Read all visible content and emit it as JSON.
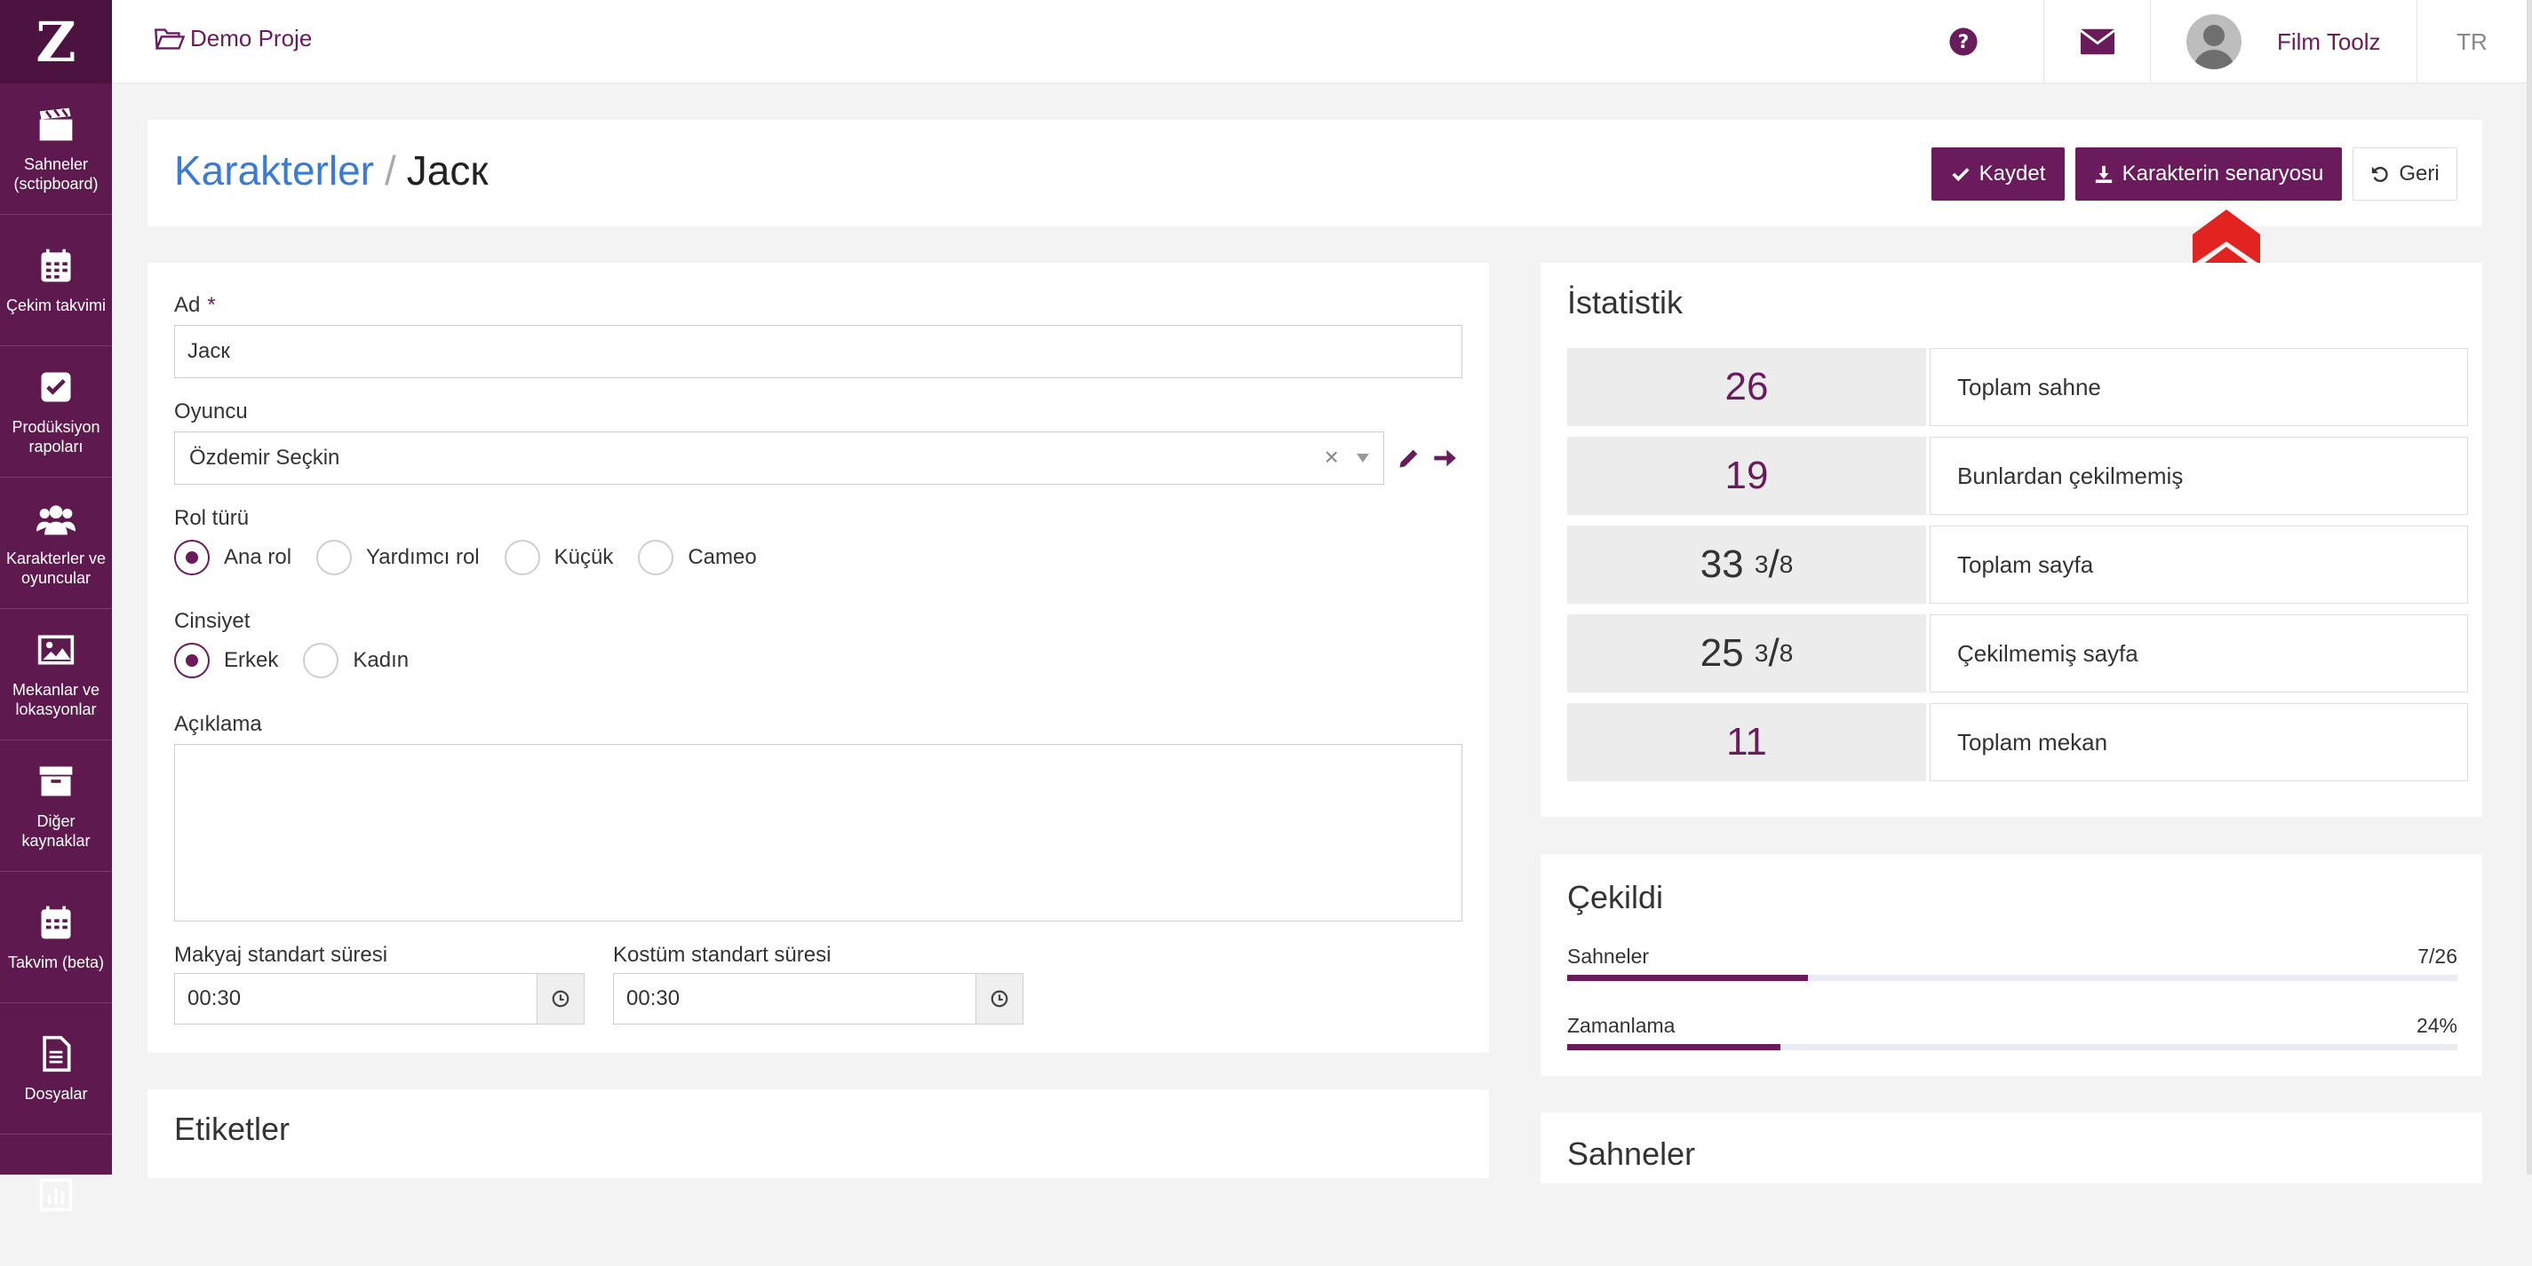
{
  "sidebar": {
    "logo": "Z",
    "items": [
      {
        "label": "Sahneler (sctipboard)",
        "icon": "clapperboard-icon"
      },
      {
        "label": "Çekim takvimi",
        "icon": "calendar-icon"
      },
      {
        "label": "Prodüksiyon rapoları",
        "icon": "checkbox-icon"
      },
      {
        "label": "Karakterler ve oyuncular",
        "icon": "users-icon"
      },
      {
        "label": "Mekanlar ve lokasyonlar",
        "icon": "image-icon"
      },
      {
        "label": "Diğer kaynaklar",
        "icon": "archive-icon"
      },
      {
        "label": "Takvim (beta)",
        "icon": "calendar-icon"
      },
      {
        "label": "Dosyalar",
        "icon": "file-icon"
      }
    ]
  },
  "topbar": {
    "project": "Demo Proje",
    "user_name": "Film Toolz",
    "lang": "TR"
  },
  "header": {
    "breadcrumb_parent": "Karakterler",
    "separator": "/",
    "title": "Jacк",
    "save_label": "Kaydet",
    "script_label": "Karakterin senaryosu",
    "back_label": "Geri"
  },
  "form": {
    "name_label": "Ad",
    "required_mark": "*",
    "name_value": "Jacк",
    "actor_label": "Oyuncu",
    "actor_value": "Özdemir Seçkin",
    "clear_glyph": "×",
    "role_label": "Rol türü",
    "role_options": [
      "Ana rol",
      "Yardımcı rol",
      "Küçük",
      "Cameo"
    ],
    "role_selected": "Ana rol",
    "gender_label": "Cinsiyet",
    "gender_options": [
      "Erkek",
      "Kadın"
    ],
    "gender_selected": "Erkek",
    "desc_label": "Açıklama",
    "desc_value": "",
    "makeup_label": "Makyaj standart süresi",
    "makeup_value": "00:30",
    "costume_label": "Kostüm standart süresi",
    "costume_value": "00:30"
  },
  "tags": {
    "title": "Etiketler"
  },
  "stats": {
    "title": "İstatistik",
    "rows": [
      {
        "value": "26",
        "label": "Toplam sahne"
      },
      {
        "value": "19",
        "label": "Bunlardan çekilmemiş"
      },
      {
        "whole": "33",
        "num": "3",
        "slash": "/",
        "den": "8",
        "label": "Toplam sayfa"
      },
      {
        "whole": "25",
        "num": "3",
        "slash": "/",
        "den": "8",
        "label": "Çekilmemiş sayfa"
      },
      {
        "value": "11",
        "label": "Toplam mekan"
      }
    ]
  },
  "shot": {
    "title": "Çekildi",
    "scenes_label": "Sahneler",
    "scenes_value": "7/26",
    "scenes_progress": 0.27,
    "timing_label": "Zamanlama",
    "timing_value": "24%",
    "timing_progress": 0.24
  },
  "scenes": {
    "title": "Sahneler"
  }
}
